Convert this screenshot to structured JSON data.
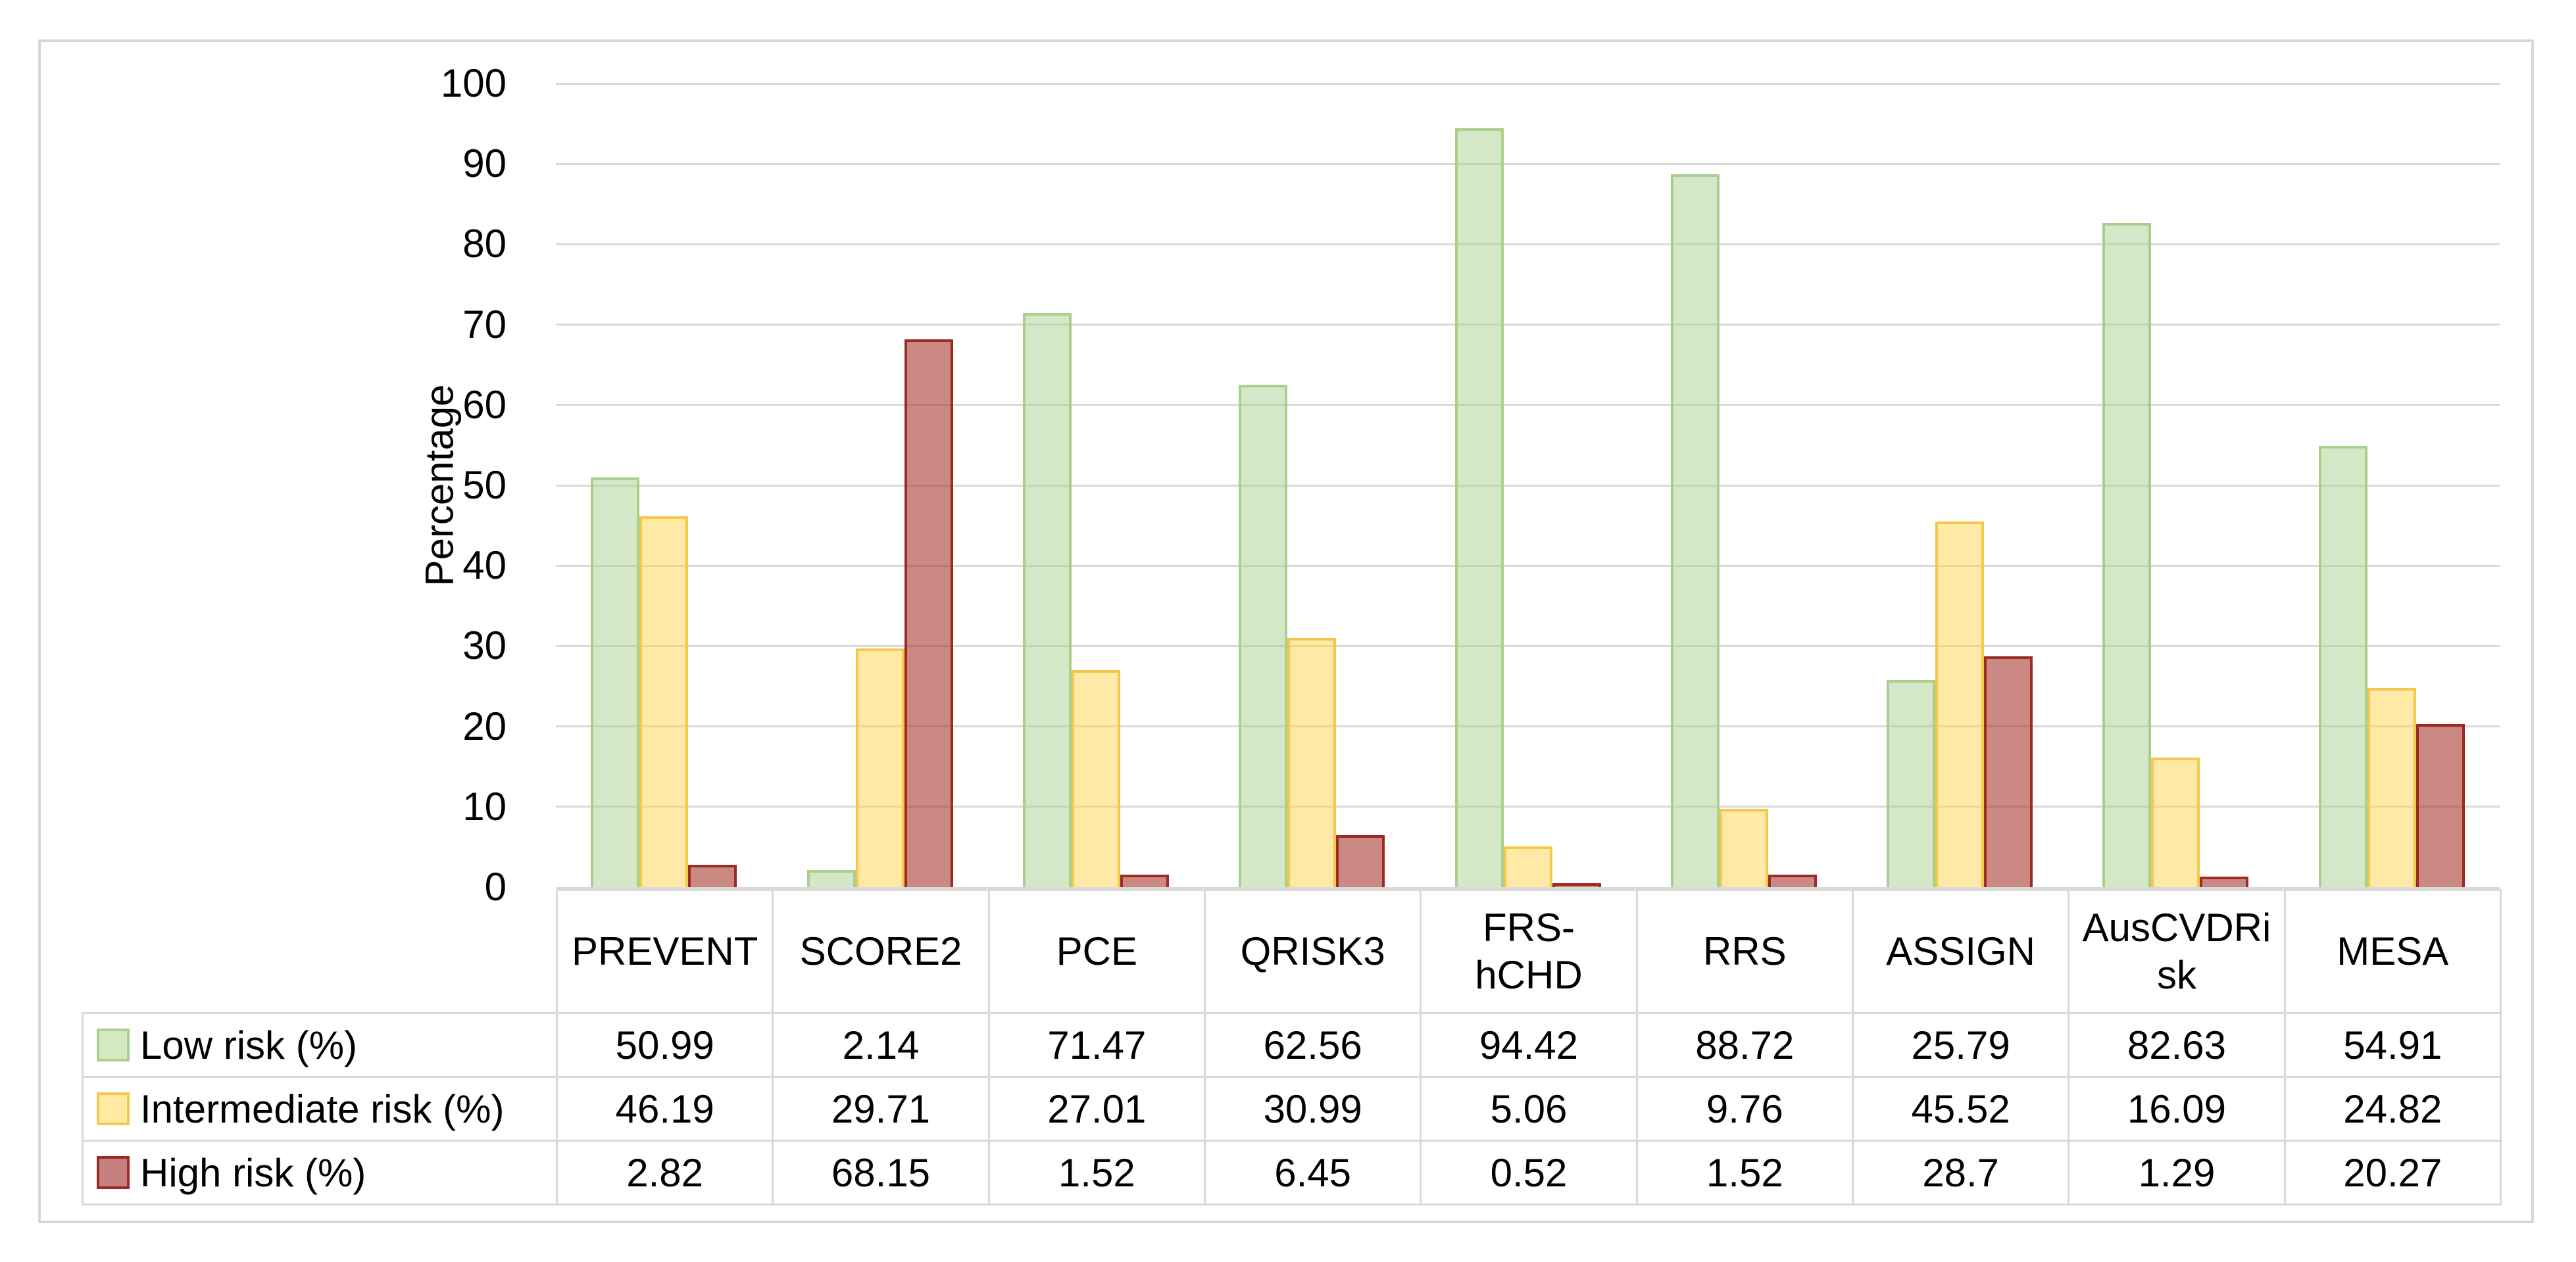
{
  "figure": {
    "background_color": "#ffffff",
    "border_color": "#d7d7d7"
  },
  "chart_data": {
    "type": "bar",
    "title": "",
    "xlabel": "",
    "ylabel": "Percentage",
    "ylim": [
      0,
      100
    ],
    "yticks": [
      0,
      10,
      20,
      30,
      40,
      50,
      60,
      70,
      80,
      90,
      100
    ],
    "grid": true,
    "gridline_color": "#d9d9d9",
    "axis_line_color": "#d9d9d9",
    "legend_position": "left-of-data-table",
    "categories": [
      "PREVENT",
      "SCORE2",
      "PCE",
      "QRISK3",
      "FRS-hCHD",
      "RRS",
      "ASSIGN",
      "AusCVDRisk",
      "MESA"
    ],
    "series": [
      {
        "name": "Low risk (%)",
        "values": [
          50.99,
          2.14,
          71.47,
          62.56,
          94.42,
          88.72,
          25.79,
          82.63,
          54.91
        ],
        "bar_fill": "rgba(169, 207, 142, 0.5)",
        "swatch_fill": "#d5e8c4",
        "border_color": "#a9cf8e"
      },
      {
        "name": "Intermediate risk (%)",
        "values": [
          46.19,
          29.71,
          27.01,
          30.99,
          5.06,
          9.76,
          45.52,
          16.09,
          24.82
        ],
        "bar_fill": "rgba(255, 211, 77, 0.5)",
        "swatch_fill": "#ffe9a3",
        "border_color": "#f5c74b"
      },
      {
        "name": "High risk (%)",
        "values": [
          2.82,
          68.15,
          1.52,
          6.45,
          0.52,
          1.52,
          28.7,
          1.29,
          20.27
        ],
        "bar_fill": "rgba(158, 40, 28, 0.55)",
        "swatch_fill": "#c48180",
        "border_color": "#9c2b21"
      }
    ]
  }
}
